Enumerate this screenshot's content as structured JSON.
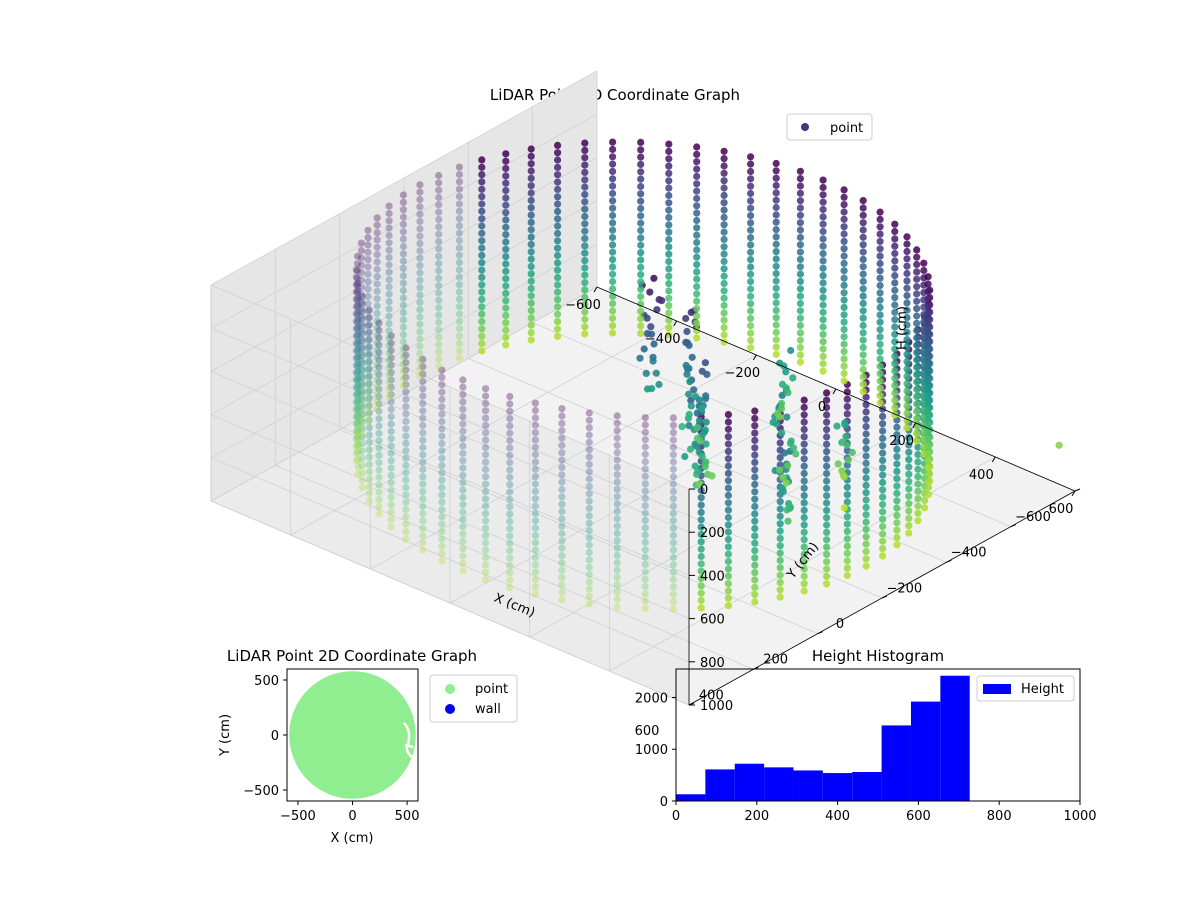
{
  "chart_data": [
    {
      "type": "scatter3d",
      "title": "LiDAR Point 3D Coordinate Graph",
      "xlabel": "X (cm)",
      "ylabel": "Y (cm)",
      "zlabel": "H (cm)",
      "xlim": [
        -600,
        600
      ],
      "ylim": [
        -600,
        600
      ],
      "zlim": [
        0,
        1000
      ],
      "z_inverted": true,
      "xticks": [
        "−600",
        "−400",
        "−200",
        "0",
        "200",
        "400",
        "600"
      ],
      "yticks": [
        "−600",
        "−400",
        "−200",
        "0",
        "200",
        "400",
        "600"
      ],
      "zticks": [
        "0",
        "200",
        "400",
        "600",
        "800",
        "1000"
      ],
      "colormap": "viridis",
      "legend": [
        {
          "label": "point",
          "color": "#46327e"
        }
      ],
      "legend_position": "top-right",
      "cylinder": {
        "radius": 560,
        "height_min": 0,
        "height_max": 900
      },
      "objects": [
        {
          "x": -10,
          "y": -40,
          "h": [
            40,
            560
          ]
        },
        {
          "x": 70,
          "y": -60,
          "h": [
            120,
            760
          ]
        },
        {
          "x": 160,
          "y": 20,
          "h": [
            250,
            820
          ]
        },
        {
          "x": 120,
          "y": -300,
          "h": [
            500,
            800
          ]
        },
        {
          "x": 260,
          "y": -120,
          "h": [
            420,
            820
          ]
        },
        {
          "x": 220,
          "y": 100,
          "h": [
            300,
            700
          ]
        },
        {
          "x": 330,
          "y": -220,
          "h": [
            560,
            860
          ]
        },
        {
          "x": 420,
          "y": 80,
          "h": [
            380,
            720
          ]
        }
      ],
      "outliers": [
        {
          "x": 560,
          "y": -600,
          "h": 820
        },
        {
          "x": 360,
          "y": -180,
          "h": 920
        }
      ]
    },
    {
      "type": "scatter",
      "title": "LiDAR Point 2D Coordinate Graph",
      "xlabel": "X (cm)",
      "ylabel": "Y (cm)",
      "xlim": [
        -600,
        600
      ],
      "ylim": [
        -600,
        600
      ],
      "xticks": [
        "−500",
        "0",
        "500"
      ],
      "yticks": [
        "500",
        "0",
        "−500"
      ],
      "legend": [
        {
          "label": "point",
          "color": "#90ee90"
        },
        {
          "label": "wall",
          "color": "#0000ff"
        }
      ],
      "legend_position": "outside-right",
      "disk": {
        "cx": 0,
        "cy": 0,
        "r": 580
      }
    },
    {
      "type": "bar",
      "title": "Height Histogram",
      "xlabel": "",
      "ylabel": "",
      "xlim": [
        0,
        1000
      ],
      "ylim": [
        0,
        2550
      ],
      "xticks": [
        "0",
        "200",
        "400",
        "600",
        "800",
        "1000"
      ],
      "yticks": [
        "0",
        "1000",
        "2000"
      ],
      "color": "#0000ff",
      "legend": [
        {
          "label": "Height",
          "color": "#0000ff"
        }
      ],
      "legend_position": "top-right",
      "bin_edges": [
        0,
        72.7,
        145.4,
        218.1,
        290.8,
        363.5,
        436.2,
        508.9,
        581.6,
        654.3,
        727
      ],
      "values": [
        130,
        610,
        720,
        650,
        590,
        540,
        560,
        1460,
        1920,
        2420
      ]
    }
  ]
}
